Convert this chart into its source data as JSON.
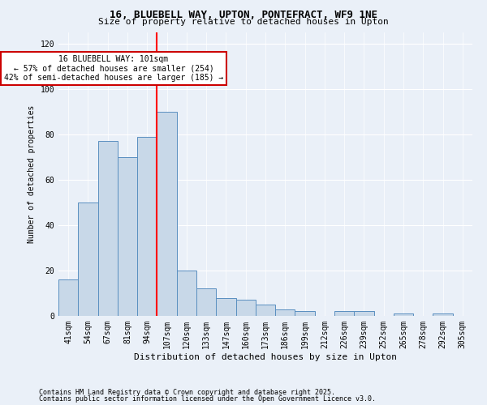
{
  "title1": "16, BLUEBELL WAY, UPTON, PONTEFRACT, WF9 1NE",
  "title2": "Size of property relative to detached houses in Upton",
  "xlabel": "Distribution of detached houses by size in Upton",
  "ylabel": "Number of detached properties",
  "categories": [
    "41sqm",
    "54sqm",
    "67sqm",
    "81sqm",
    "94sqm",
    "107sqm",
    "120sqm",
    "133sqm",
    "147sqm",
    "160sqm",
    "173sqm",
    "186sqm",
    "199sqm",
    "212sqm",
    "226sqm",
    "239sqm",
    "252sqm",
    "265sqm",
    "278sqm",
    "292sqm",
    "305sqm"
  ],
  "values": [
    16,
    50,
    77,
    70,
    79,
    90,
    20,
    12,
    8,
    7,
    5,
    3,
    2,
    0,
    2,
    2,
    0,
    1,
    0,
    1,
    0
  ],
  "bar_color": "#c8d8e8",
  "bar_edge_color": "#5a8fc0",
  "red_line_index": 5,
  "ylim": [
    0,
    125
  ],
  "yticks": [
    0,
    20,
    40,
    60,
    80,
    100,
    120
  ],
  "annotation_title": "16 BLUEBELL WAY: 101sqm",
  "annotation_line1": "← 57% of detached houses are smaller (254)",
  "annotation_line2": "42% of semi-detached houses are larger (185) →",
  "annotation_box_color": "#ffffff",
  "annotation_box_edge": "#cc0000",
  "footer1": "Contains HM Land Registry data © Crown copyright and database right 2025.",
  "footer2": "Contains public sector information licensed under the Open Government Licence v3.0.",
  "bg_color": "#eaf0f8",
  "title1_fontsize": 9,
  "title2_fontsize": 8,
  "xlabel_fontsize": 8,
  "ylabel_fontsize": 7,
  "tick_fontsize": 7,
  "ann_fontsize": 7,
  "footer_fontsize": 6
}
